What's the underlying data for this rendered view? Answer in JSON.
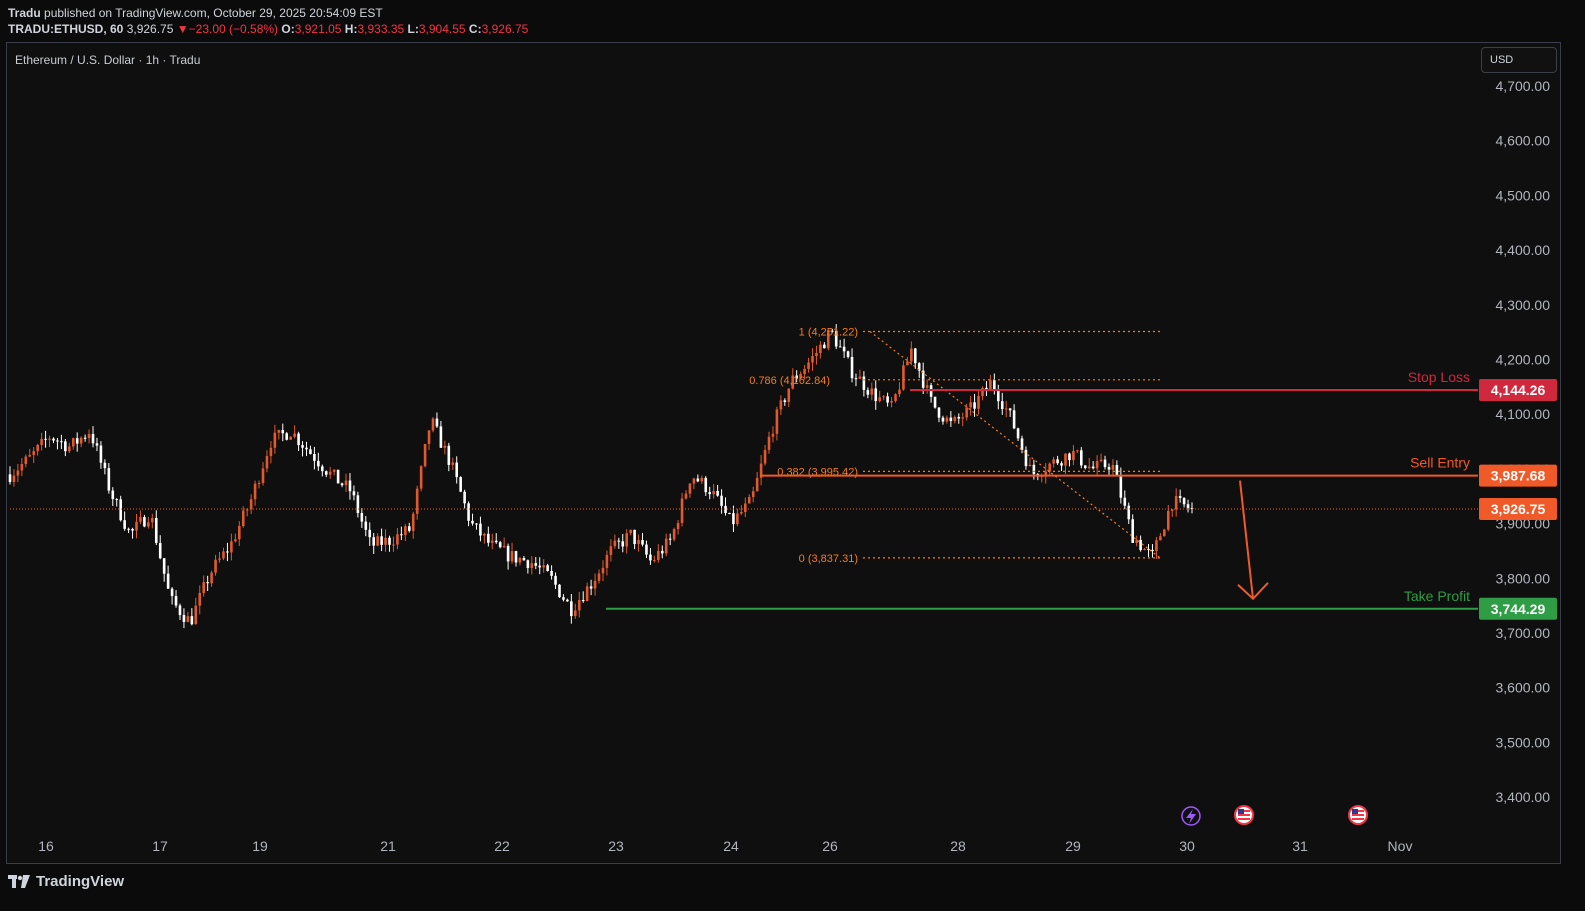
{
  "header": {
    "publisher": "Tradu",
    "published_text": "published on TradingView.com, October 29, 2025 20:54:09 EST",
    "symbol": "TRADU:ETHUSD, 60",
    "last": "3,926.75",
    "change_arrow": "▼",
    "change": "−23.00 (−0.58%)",
    "o_label": "O:",
    "o_value": "3,921.05",
    "h_label": "H:",
    "h_value": "3,933.35",
    "l_label": "L:",
    "l_value": "3,904.55",
    "c_label": "C:",
    "c_value": "3,926.75"
  },
  "chart_title": "Ethereum / U.S. Dollar · 1h · Tradu",
  "currency_button": "USD",
  "footer": {
    "brand": "TradingView"
  },
  "colors": {
    "bull": "#f7525f",
    "bull_body": "#e05a2c",
    "bear": "#ffffff",
    "fib": "#f57c1f",
    "sell": "#f05a28",
    "stop": "#d0283c",
    "take_profit": "#2e9d45"
  },
  "chart_data": {
    "type": "candlestick",
    "title": "Ethereum / U.S. Dollar · 1h · Tradu",
    "ylim": [
      3350,
      4750
    ],
    "y_ticks": [
      "4,700.00",
      "4,600.00",
      "4,500.00",
      "4,400.00",
      "4,300.00",
      "4,200.00",
      "4,100.00",
      "4,000.00",
      "3,900.00",
      "3,800.00",
      "3,700.00",
      "3,600.00",
      "3,500.00",
      "3,400.00"
    ],
    "y_tick_values": [
      4700,
      4600,
      4500,
      4400,
      4300,
      4200,
      4100,
      4000,
      3900,
      3800,
      3700,
      3600,
      3500,
      3400
    ],
    "x_ticks": [
      "16",
      "17",
      "19",
      "21",
      "22",
      "23",
      "24",
      "26",
      "28",
      "29",
      "30",
      "31",
      "Nov"
    ],
    "price_path": [
      [
        "16",
        3990
      ],
      [
        "16",
        4020
      ],
      [
        "16",
        4060
      ],
      [
        "16",
        4040
      ],
      [
        "16",
        4070
      ],
      [
        "17",
        3960
      ],
      [
        "17",
        3880
      ],
      [
        "17",
        3920
      ],
      [
        "17",
        3760
      ],
      [
        "17",
        3720
      ],
      [
        "19",
        3810
      ],
      [
        "19",
        3860
      ],
      [
        "19",
        3940
      ],
      [
        "19",
        4050
      ],
      [
        "19",
        4070
      ],
      [
        "21",
        4030
      ],
      [
        "21",
        3990
      ],
      [
        "21",
        3960
      ],
      [
        "21",
        3860
      ],
      [
        "21",
        3870
      ],
      [
        "22",
        3890
      ],
      [
        "22",
        4090
      ],
      [
        "22",
        4010
      ],
      [
        "22",
        3900
      ],
      [
        "22",
        3860
      ],
      [
        "23",
        3840
      ],
      [
        "23",
        3830
      ],
      [
        "23",
        3800
      ],
      [
        "23",
        3744
      ],
      [
        "23",
        3790
      ],
      [
        "24",
        3850
      ],
      [
        "24",
        3880
      ],
      [
        "24",
        3830
      ],
      [
        "24",
        3870
      ],
      [
        "24",
        3990
      ],
      [
        "26",
        3960
      ],
      [
        "26",
        3900
      ],
      [
        "26",
        3940
      ],
      [
        "26",
        4070
      ],
      [
        "26",
        4160
      ],
      [
        "26",
        4200
      ],
      [
        "26",
        4251
      ],
      [
        "28",
        4180
      ],
      [
        "28",
        4140
      ],
      [
        "28",
        4110
      ],
      [
        "28",
        4220
      ],
      [
        "28",
        4120
      ],
      [
        "28",
        4080
      ],
      [
        "29",
        4110
      ],
      [
        "29",
        4160
      ],
      [
        "29",
        4090
      ],
      [
        "29",
        3990
      ],
      [
        "29",
        4010
      ],
      [
        "29",
        4030
      ],
      [
        "29",
        4000
      ],
      [
        "30",
        4010
      ],
      [
        "30",
        3880
      ],
      [
        "30",
        3837
      ],
      [
        "30",
        3940
      ],
      [
        "30",
        3926.75
      ]
    ],
    "last_price": 3926.75,
    "fib_levels": [
      {
        "ratio_label": "1 (4,251.22)",
        "value": 4251.22
      },
      {
        "ratio_label": "0.786 (4,162.84)",
        "value": 4162.84
      },
      {
        "ratio_label": "0.382 (3,995.42)",
        "value": 3995.42
      },
      {
        "ratio_label": "0 (3,837.31)",
        "value": 3837.31
      }
    ],
    "levels": [
      {
        "label": "Stop Loss",
        "price_label": "4,144.26",
        "value": 4144.26
      },
      {
        "label": "Sell Entry",
        "price_label": "3,987.68",
        "value": 3987.68
      },
      {
        "label": "",
        "price_label": "3,926.75",
        "value": 3926.75
      },
      {
        "label": "Take Profit",
        "price_label": "3,744.29",
        "value": 3744.29
      }
    ],
    "grid": false
  }
}
